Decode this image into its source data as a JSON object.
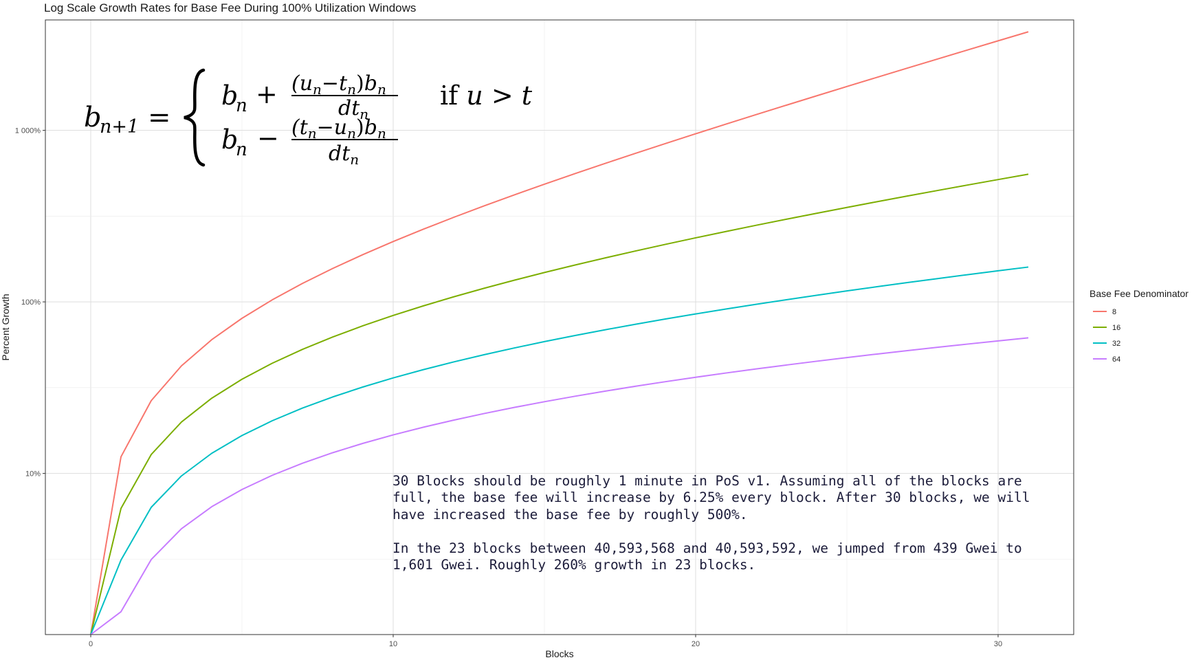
{
  "chart_data": {
    "type": "line",
    "title": "Log Scale Growth Rates for Base Fee During 100% Utilization Windows",
    "xlabel": "Blocks",
    "ylabel": "Percent Growth",
    "x_ticks": [
      0,
      10,
      20,
      30
    ],
    "x_tick_labels": [
      "0",
      "10",
      "20",
      "30"
    ],
    "xlim": [
      -1.5,
      32.5
    ],
    "y_scale": "log",
    "y_ticks": [
      10,
      100,
      1000
    ],
    "y_tick_labels": [
      "10%",
      "100%",
      "1 000%"
    ],
    "ylim": [
      1.15,
      4400
    ],
    "grid": true,
    "legend": {
      "title": "Base Fee Denominator",
      "position": "right"
    },
    "x": [
      0,
      1,
      2,
      3,
      4,
      5,
      6,
      7,
      8,
      9,
      10,
      11,
      12,
      13,
      14,
      15,
      16,
      17,
      18,
      19,
      20,
      21,
      22,
      23,
      24,
      25,
      26,
      27,
      28,
      29,
      30,
      31
    ],
    "series": [
      {
        "name": "8",
        "color": "#F8766D"
      },
      {
        "name": "16",
        "color": "#7CAE00"
      },
      {
        "name": "32",
        "color": "#00BFC4"
      },
      {
        "name": "64",
        "color": "#C77CFF"
      }
    ],
    "formula": {
      "lhs": "b",
      "lhs_sub": "n+1",
      "case1": {
        "sign": "+",
        "num": "(u",
        "cond": "if u > t"
      },
      "case2": {
        "sign": "−"
      }
    },
    "annotation": [
      "30 Blocks should be roughly 1 minute in PoS v1. Assuming all of the blocks are",
      "full, the base fee will increase by 6.25% every block. After 30 blocks, we will",
      "have increased the base fee by roughly 500%.",
      "",
      "In the 23 blocks between 40,593,568 and 40,593,592, we jumped from 439 Gwei to",
      "1,601 Gwei. Roughly 260% growth in 23 blocks."
    ]
  }
}
